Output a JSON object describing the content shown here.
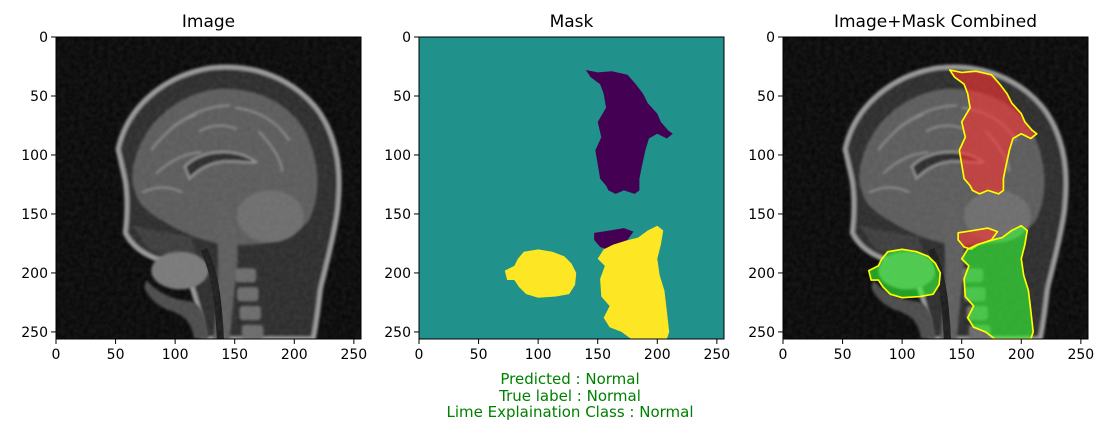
{
  "figure": {
    "colors": {
      "frame": "#000000",
      "caption": "#008000",
      "mask_background": "#21918c",
      "mask_negative": "#440154",
      "mask_positive": "#fde725",
      "overlay_negative": "#ff3333",
      "overlay_positive": "#33ff33",
      "overlay_edge": "#ffff00"
    },
    "caption_lines": [
      "Predicted : Normal",
      "True label : Normal",
      "Lime Explaination Class : Normal"
    ]
  },
  "chart_data": [
    {
      "type": "image",
      "title": "Image",
      "description_colormap": "gray",
      "xlim": [
        0,
        256
      ],
      "ylim": [
        256,
        0
      ],
      "xticks": [
        0,
        50,
        100,
        150,
        200,
        250
      ],
      "yticks": [
        0,
        50,
        100,
        150,
        200,
        250
      ]
    },
    {
      "type": "heatmap",
      "title": "Mask",
      "colormap": "viridis",
      "levels": [
        -1,
        0,
        1
      ],
      "xlim": [
        0,
        256
      ],
      "ylim": [
        256,
        0
      ],
      "xticks": [
        0,
        50,
        100,
        150,
        200,
        250
      ],
      "yticks": [
        0,
        50,
        100,
        150,
        200,
        250
      ],
      "regions": [
        {
          "value": -1,
          "polygon": [
            [
              140,
              28
            ],
            [
              150,
              30
            ],
            [
              162,
              29
            ],
            [
              175,
              32
            ],
            [
              182,
              40
            ],
            [
              188,
              48
            ],
            [
              192,
              56
            ],
            [
              200,
              65
            ],
            [
              203,
              72
            ],
            [
              209,
              79
            ],
            [
              213,
              82
            ],
            [
              208,
              86
            ],
            [
              200,
              82
            ],
            [
              193,
              86
            ],
            [
              190,
              96
            ],
            [
              187,
              110
            ],
            [
              185,
              120
            ],
            [
              185,
              130
            ],
            [
              181,
              133
            ],
            [
              172,
              130
            ],
            [
              165,
              133
            ],
            [
              159,
              130
            ],
            [
              157,
              126
            ],
            [
              152,
              120
            ],
            [
              150,
              108
            ],
            [
              148,
              96
            ],
            [
              153,
              85
            ],
            [
              150,
              72
            ],
            [
              157,
              60
            ],
            [
              155,
              48
            ],
            [
              152,
              40
            ],
            [
              144,
              34
            ]
          ]
        },
        {
          "value": -1,
          "polygon": [
            [
              147,
              166
            ],
            [
              160,
              164
            ],
            [
              172,
              162
            ],
            [
              180,
              165
            ],
            [
              175,
              172
            ],
            [
              164,
              176
            ],
            [
              158,
              180
            ],
            [
              152,
              178
            ],
            [
              147,
              172
            ]
          ]
        },
        {
          "value": 1,
          "polygon": [
            [
              200,
              160
            ],
            [
              205,
              164
            ],
            [
              203,
              176
            ],
            [
              200,
              188
            ],
            [
              202,
              202
            ],
            [
              206,
              215
            ],
            [
              208,
              232
            ],
            [
              210,
              250
            ],
            [
              208,
              256
            ],
            [
              178,
              256
            ],
            [
              170,
              250
            ],
            [
              160,
              246
            ],
            [
              155,
              238
            ],
            [
              160,
              228
            ],
            [
              153,
              220
            ],
            [
              152,
              205
            ],
            [
              156,
              194
            ],
            [
              150,
              188
            ],
            [
              155,
              180
            ],
            [
              163,
              176
            ],
            [
              176,
              172
            ],
            [
              184,
              170
            ],
            [
              192,
              164
            ]
          ]
        },
        {
          "value": 1,
          "polygon": [
            [
              88,
              182
            ],
            [
              100,
              180
            ],
            [
              112,
              182
            ],
            [
              122,
              186
            ],
            [
              128,
              192
            ],
            [
              132,
              200
            ],
            [
              131,
              210
            ],
            [
              126,
              218
            ],
            [
              115,
              220
            ],
            [
              100,
              221
            ],
            [
              90,
              218
            ],
            [
              84,
              212
            ],
            [
              80,
              206
            ],
            [
              74,
              206
            ],
            [
              72,
              198
            ],
            [
              80,
              194
            ],
            [
              83,
              188
            ]
          ]
        }
      ]
    },
    {
      "type": "image",
      "title": "Image+Mask Combined",
      "xlim": [
        0,
        256
      ],
      "ylim": [
        256,
        0
      ],
      "xticks": [
        0,
        50,
        100,
        150,
        200,
        250
      ],
      "yticks": [
        0,
        50,
        100,
        150,
        200,
        250
      ]
    }
  ]
}
